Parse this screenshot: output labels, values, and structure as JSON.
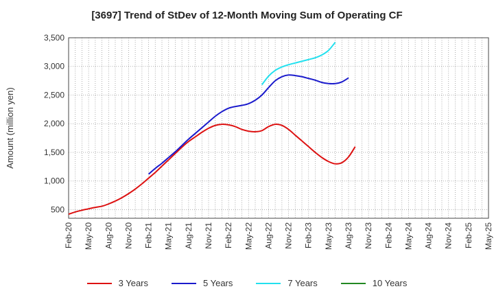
{
  "chart_data": {
    "type": "line",
    "title": "[3697]  Trend of StDev of 12-Month Moving Sum of Operating CF",
    "xlabel": "",
    "ylabel": "Amount (million yen)",
    "ylim": [
      350,
      3500
    ],
    "yticks": [
      500,
      1000,
      1500,
      2000,
      2500,
      3000,
      3500
    ],
    "ytick_labels": [
      "500",
      "1,000",
      "1,500",
      "2,000",
      "2,500",
      "3,000",
      "3,500"
    ],
    "xtick_labels": [
      "Feb-20",
      "May-20",
      "Aug-20",
      "Nov-20",
      "Feb-21",
      "May-21",
      "Aug-21",
      "Nov-21",
      "Feb-22",
      "May-22",
      "Aug-22",
      "Nov-22",
      "Feb-23",
      "May-23",
      "Aug-23",
      "Nov-23",
      "Feb-24",
      "May-24",
      "Aug-24",
      "Nov-24",
      "Feb-25",
      "May-25"
    ],
    "grid": true,
    "legend_position": "bottom",
    "series": [
      {
        "name": "3 Years",
        "color": "#dd1111",
        "points": [
          [
            0,
            420
          ],
          [
            1,
            460
          ],
          [
            2,
            490
          ],
          [
            3,
            515
          ],
          [
            4,
            540
          ],
          [
            5,
            560
          ],
          [
            6,
            600
          ],
          [
            7,
            650
          ],
          [
            8,
            710
          ],
          [
            9,
            780
          ],
          [
            10,
            860
          ],
          [
            11,
            950
          ],
          [
            12,
            1050
          ],
          [
            13,
            1150
          ],
          [
            14,
            1260
          ],
          [
            15,
            1370
          ],
          [
            16,
            1480
          ],
          [
            17,
            1590
          ],
          [
            18,
            1690
          ],
          [
            19,
            1770
          ],
          [
            20,
            1850
          ],
          [
            21,
            1920
          ],
          [
            22,
            1970
          ],
          [
            23,
            1990
          ],
          [
            24,
            1980
          ],
          [
            25,
            1950
          ],
          [
            26,
            1900
          ],
          [
            27,
            1870
          ],
          [
            28,
            1860
          ],
          [
            29,
            1880
          ],
          [
            30,
            1950
          ],
          [
            31,
            1990
          ],
          [
            32,
            1970
          ],
          [
            33,
            1900
          ],
          [
            34,
            1800
          ],
          [
            35,
            1700
          ],
          [
            36,
            1600
          ],
          [
            37,
            1500
          ],
          [
            38,
            1410
          ],
          [
            39,
            1340
          ],
          [
            40,
            1300
          ],
          [
            41,
            1320
          ],
          [
            42,
            1420
          ],
          [
            43,
            1600
          ]
        ]
      },
      {
        "name": "5 Years",
        "color": "#1a1acc",
        "points": [
          [
            12,
            1120
          ],
          [
            13,
            1220
          ],
          [
            14,
            1310
          ],
          [
            15,
            1410
          ],
          [
            16,
            1510
          ],
          [
            17,
            1620
          ],
          [
            18,
            1730
          ],
          [
            19,
            1830
          ],
          [
            20,
            1930
          ],
          [
            21,
            2030
          ],
          [
            22,
            2130
          ],
          [
            23,
            2210
          ],
          [
            24,
            2270
          ],
          [
            25,
            2300
          ],
          [
            26,
            2320
          ],
          [
            27,
            2350
          ],
          [
            28,
            2410
          ],
          [
            29,
            2500
          ],
          [
            30,
            2630
          ],
          [
            31,
            2750
          ],
          [
            32,
            2820
          ],
          [
            33,
            2850
          ],
          [
            34,
            2840
          ],
          [
            35,
            2820
          ],
          [
            36,
            2790
          ],
          [
            37,
            2760
          ],
          [
            38,
            2720
          ],
          [
            39,
            2700
          ],
          [
            40,
            2700
          ],
          [
            41,
            2730
          ],
          [
            42,
            2800
          ]
        ]
      },
      {
        "name": "7 Years",
        "color": "#22e0ee",
        "points": [
          [
            29,
            2680
          ],
          [
            30,
            2830
          ],
          [
            31,
            2930
          ],
          [
            32,
            2990
          ],
          [
            33,
            3030
          ],
          [
            34,
            3060
          ],
          [
            35,
            3090
          ],
          [
            36,
            3120
          ],
          [
            37,
            3150
          ],
          [
            38,
            3200
          ],
          [
            39,
            3280
          ],
          [
            40,
            3420
          ]
        ]
      },
      {
        "name": "10 Years",
        "color": "#228822",
        "points": []
      }
    ]
  }
}
